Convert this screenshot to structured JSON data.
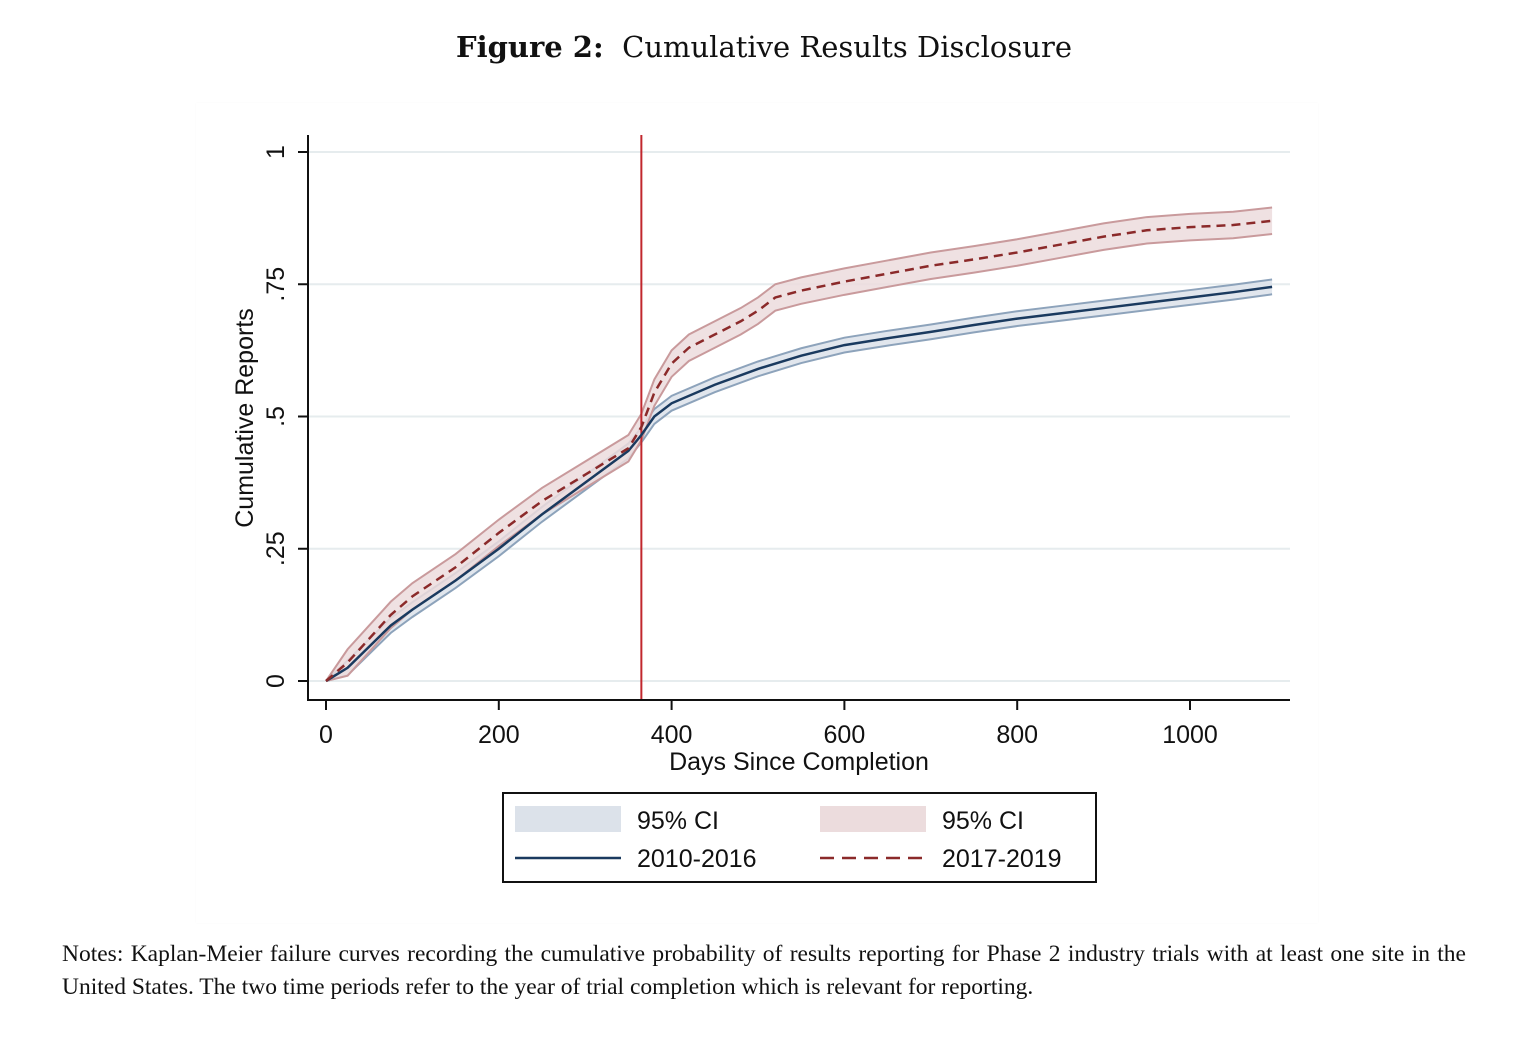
{
  "figure": {
    "label": "Figure 2:",
    "title": "Cumulative Results Disclosure"
  },
  "notes": "Notes: Kaplan-Meier failure curves recording the cumulative probability of results reporting for Phase 2 industry trials with at least one site in the United States. The two time periods refer to the year of trial completion which is relevant for reporting.",
  "chart_data": {
    "type": "line",
    "title": "",
    "xlabel": "Days Since Completion",
    "ylabel": "Cumulative Reports",
    "xlim": [
      0,
      1110
    ],
    "ylim": [
      0,
      1
    ],
    "xticks": [
      0,
      200,
      400,
      600,
      800,
      1000
    ],
    "xtick_labels": [
      "0",
      "200",
      "400",
      "600",
      "800",
      "1000"
    ],
    "yticks": [
      0,
      0.25,
      0.5,
      0.75,
      1
    ],
    "ytick_labels": [
      "0",
      ".25",
      ".5",
      ".75",
      "1"
    ],
    "grid": "horizontal",
    "reference_line": {
      "x": 365,
      "color": "#c1272d"
    },
    "legend": {
      "placement": "bottom",
      "entries": [
        "95% CI",
        "95% CI",
        "2010-2016",
        "2017-2019"
      ]
    },
    "series": [
      {
        "name": "2010-2016",
        "style": "solid",
        "color": "#1a3a5f",
        "ci_fill": "#dce2ea",
        "ci_edge": "#8da3bb",
        "x": [
          0,
          25,
          50,
          75,
          100,
          150,
          200,
          250,
          300,
          350,
          365,
          380,
          400,
          450,
          500,
          550,
          600,
          650,
          700,
          750,
          800,
          850,
          900,
          950,
          1000,
          1050,
          1095
        ],
        "y": [
          0,
          0.025,
          0.065,
          0.105,
          0.135,
          0.19,
          0.25,
          0.315,
          0.375,
          0.435,
          0.465,
          0.5,
          0.525,
          0.56,
          0.59,
          0.615,
          0.635,
          0.648,
          0.66,
          0.673,
          0.685,
          0.695,
          0.705,
          0.715,
          0.725,
          0.735,
          0.745
        ],
        "ci_half_width": 0.014
      },
      {
        "name": "2017-2019",
        "style": "dashed",
        "color": "#8b2a2a",
        "ci_fill": "#ecdcdd",
        "ci_edge": "#c99a9c",
        "x": [
          0,
          25,
          50,
          75,
          100,
          150,
          200,
          250,
          300,
          350,
          365,
          380,
          400,
          420,
          450,
          480,
          500,
          520,
          550,
          600,
          650,
          700,
          750,
          800,
          850,
          900,
          950,
          1000,
          1050,
          1095
        ],
        "y": [
          0,
          0.035,
          0.08,
          0.125,
          0.16,
          0.215,
          0.28,
          0.34,
          0.39,
          0.44,
          0.48,
          0.545,
          0.6,
          0.63,
          0.655,
          0.68,
          0.7,
          0.725,
          0.738,
          0.755,
          0.77,
          0.785,
          0.797,
          0.81,
          0.825,
          0.84,
          0.852,
          0.858,
          0.862,
          0.87
        ],
        "ci_half_width": 0.025
      }
    ]
  }
}
